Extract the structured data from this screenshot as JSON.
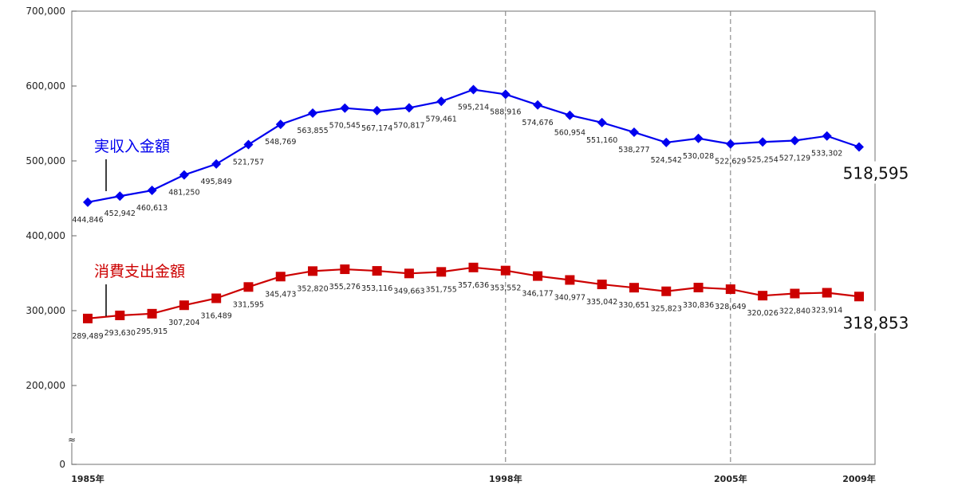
{
  "chart_data": {
    "type": "line",
    "title": "",
    "xlabel": "",
    "ylabel": "",
    "ylim": [
      0,
      700000
    ],
    "axis_break": "between 0 and 200,000",
    "axis_break_symbol": "≈",
    "y_ticks": [
      "0",
      "200,000",
      "300,000",
      "400,000",
      "500,000",
      "600,000",
      "700,000"
    ],
    "y_tick_values": [
      0,
      200000,
      300000,
      400000,
      500000,
      600000,
      700000
    ],
    "x": [
      1985,
      1986,
      1987,
      1988,
      1989,
      1990,
      1991,
      1992,
      1993,
      1994,
      1995,
      1996,
      1997,
      1998,
      1999,
      2000,
      2001,
      2002,
      2003,
      2004,
      2005,
      2006,
      2007,
      2008,
      2009
    ],
    "x_tick_labels": [
      {
        "year": 1985,
        "label": "1985年"
      },
      {
        "year": 1998,
        "label": "1998年"
      },
      {
        "year": 2005,
        "label": "2005年"
      },
      {
        "year": 2009,
        "label": "2009年"
      }
    ],
    "reference_lines": [
      1998,
      2005
    ],
    "series": [
      {
        "name": "実収入金額",
        "color": "#0000ee",
        "marker": "diamond",
        "values": [
          444846,
          452942,
          460613,
          481250,
          495849,
          521757,
          548769,
          563855,
          570545,
          567174,
          570817,
          579461,
          595214,
          588916,
          574676,
          560954,
          551160,
          538277,
          524542,
          530028,
          522629,
          525254,
          527129,
          533302,
          518595
        ],
        "last_value_label": "518,595"
      },
      {
        "name": "消費支出金額",
        "color": "#cc0000",
        "marker": "square",
        "values": [
          289489,
          293630,
          295915,
          307204,
          316489,
          331595,
          345473,
          352820,
          355276,
          353116,
          349663,
          351755,
          357636,
          353552,
          346177,
          340977,
          335042,
          330651,
          325823,
          330836,
          328649,
          320026,
          322840,
          323914,
          318853
        ],
        "last_value_label": "318,853"
      }
    ]
  }
}
